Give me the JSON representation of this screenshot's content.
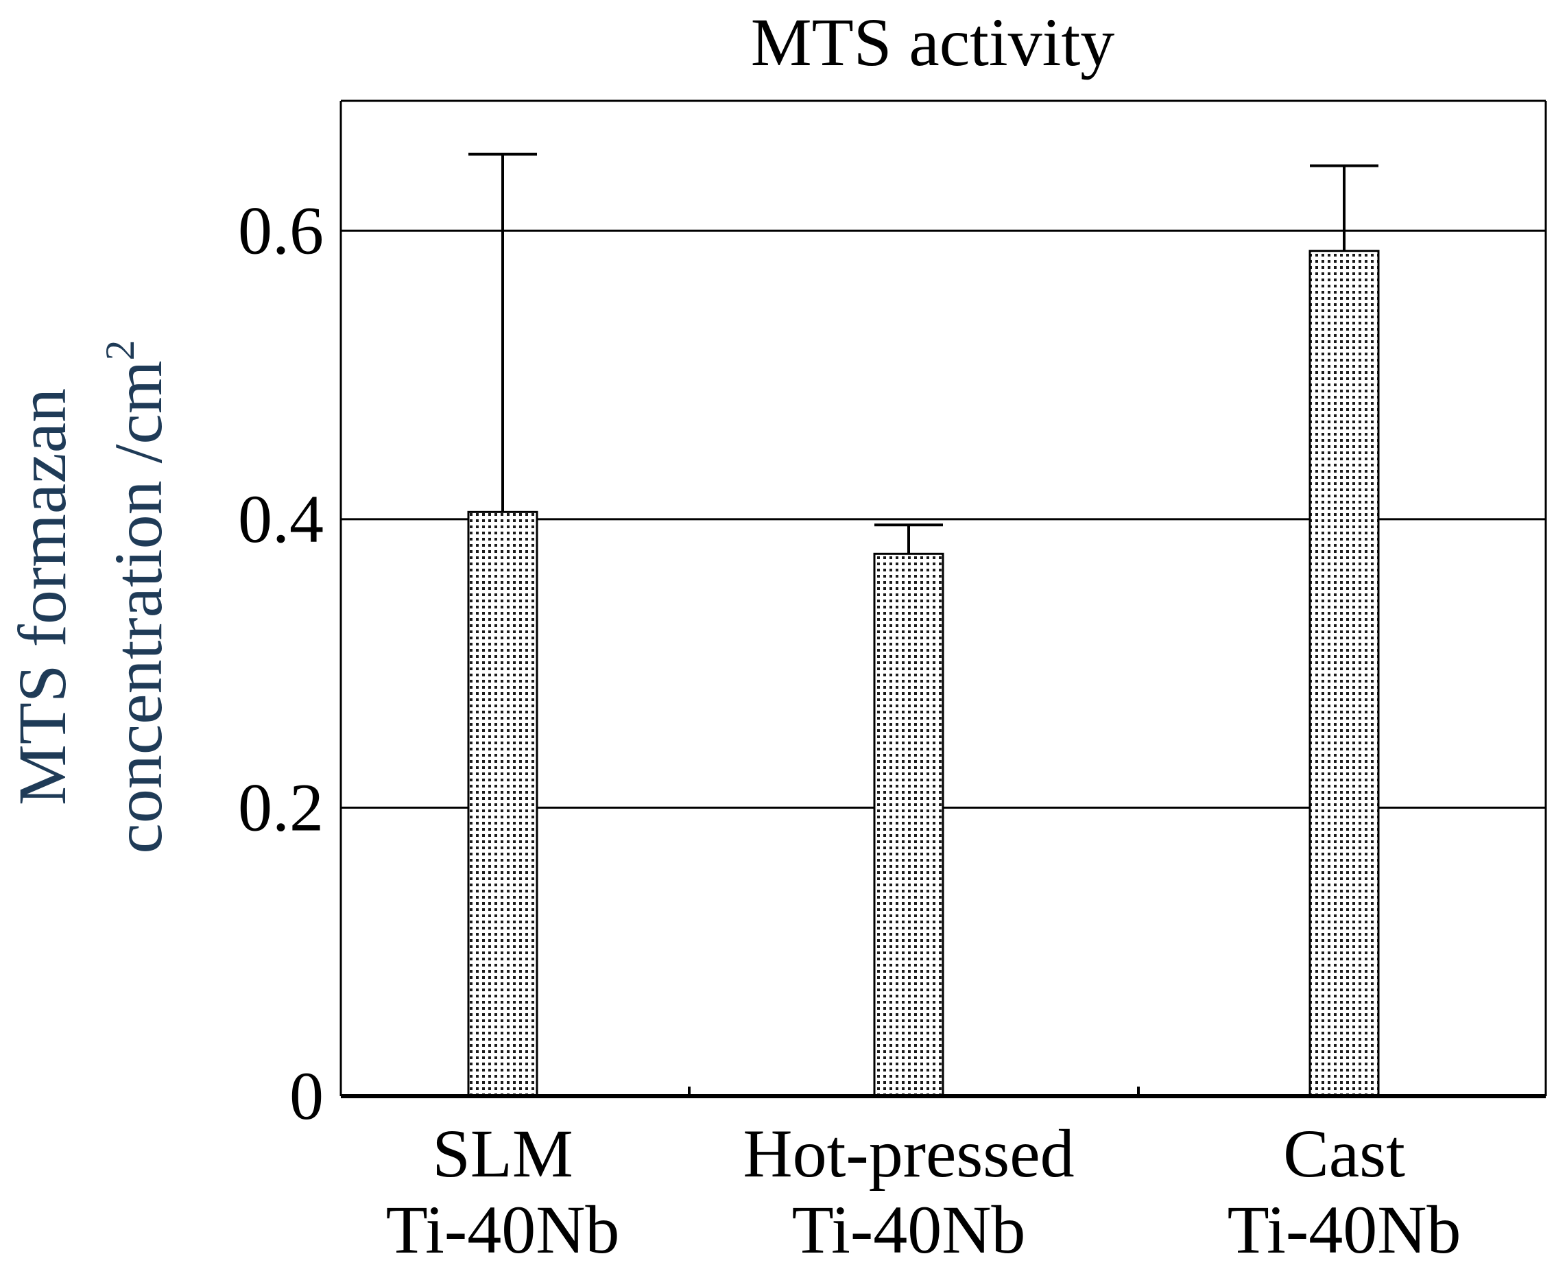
{
  "chart_data": {
    "type": "bar",
    "title": "MTS activity",
    "ylabel_line1": "MTS formazan",
    "ylabel_line2": "concentration /cm",
    "ylabel_superscript": "2",
    "xlabel": "",
    "categories": [
      {
        "line1": "SLM",
        "line2": "Ti-40Nb"
      },
      {
        "line1": "Hot-pressed",
        "line2": "Ti-40Nb"
      },
      {
        "line1": "Cast",
        "line2": "Ti-40Nb"
      }
    ],
    "values": [
      0.405,
      0.376,
      0.586
    ],
    "error_upper": [
      0.653,
      0.396,
      0.645
    ],
    "ylim": [
      0,
      0.69
    ],
    "yticks": [
      0,
      0.2,
      0.4,
      0.6
    ],
    "ytick_labels": [
      "0",
      "0.2",
      "0.4",
      "0.6"
    ],
    "grid": true,
    "bar_pattern": "dotted",
    "colors": {
      "axis": "#000000",
      "bar_fill": "#ffffff",
      "bar_dots": "#1a1a1a",
      "ylabel": "#1f3b57",
      "text": "#000000"
    }
  }
}
